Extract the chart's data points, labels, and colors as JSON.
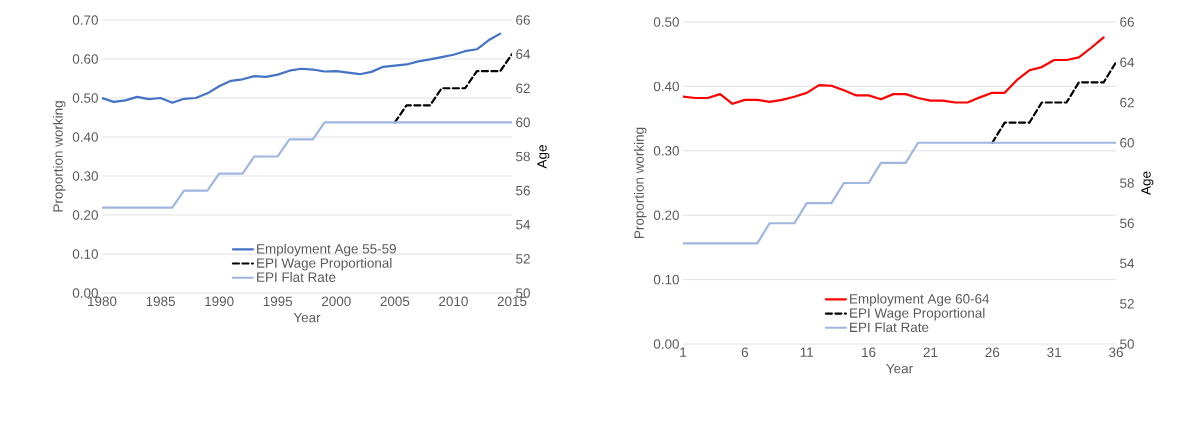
{
  "chart_data": [
    {
      "type": "line",
      "xlabel": "Year",
      "ylabel": "Proportion working",
      "y2label": "Age",
      "x": [
        1980,
        1981,
        1982,
        1983,
        1984,
        1985,
        1986,
        1987,
        1988,
        1989,
        1990,
        1991,
        1992,
        1993,
        1994,
        1995,
        1996,
        1997,
        1998,
        1999,
        2000,
        2001,
        2002,
        2003,
        2004,
        2005,
        2006,
        2007,
        2008,
        2009,
        2010,
        2011,
        2012,
        2013,
        2014,
        2015
      ],
      "series": [
        {
          "name": "Employment Age 55-59",
          "color": "#4472c4",
          "line_style": "solid",
          "axis": "y",
          "values": [
            0.5,
            0.49,
            0.494,
            0.503,
            0.497,
            0.5,
            0.488,
            0.498,
            0.5,
            0.512,
            0.53,
            0.544,
            0.548,
            0.556,
            0.554,
            0.56,
            0.57,
            0.575,
            0.573,
            0.568,
            0.569,
            0.565,
            0.561,
            0.567,
            0.58,
            0.583,
            0.586,
            0.594,
            0.599,
            0.605,
            0.611,
            0.62,
            0.625,
            0.648,
            0.665,
            null
          ]
        },
        {
          "name": "EPI Wage Proportional",
          "color": "#000000",
          "line_style": "dashed",
          "axis": "y2",
          "values": [
            null,
            null,
            null,
            null,
            null,
            null,
            null,
            null,
            null,
            null,
            null,
            null,
            null,
            null,
            null,
            null,
            null,
            null,
            null,
            null,
            null,
            null,
            null,
            null,
            null,
            60,
            61,
            61,
            61,
            62,
            62,
            62,
            63,
            63,
            63,
            64
          ]
        },
        {
          "name": "EPI Flat Rate",
          "color": "#9fb6e0",
          "line_style": "solid",
          "axis": "y2",
          "values": [
            55,
            55,
            55,
            55,
            55,
            55,
            55,
            56,
            56,
            56,
            57,
            57,
            57,
            58,
            58,
            58,
            59,
            59,
            59,
            60,
            60,
            60,
            60,
            60,
            60,
            60,
            60,
            60,
            60,
            60,
            60,
            60,
            60,
            60,
            60,
            60
          ]
        }
      ],
      "xlim": [
        1980,
        2015
      ],
      "xticks": [
        1980,
        1985,
        1990,
        1995,
        2000,
        2005,
        2010,
        2015
      ],
      "ylim": [
        0,
        0.7
      ],
      "yticks": [
        {
          "value": 0,
          "label": "0.00"
        },
        {
          "value": 0.1,
          "label": "0.10"
        },
        {
          "value": 0.2,
          "label": "0.20"
        },
        {
          "value": 0.3,
          "label": "0.30"
        },
        {
          "value": 0.4,
          "label": "0.40"
        },
        {
          "value": 0.5,
          "label": "0.50"
        },
        {
          "value": 0.6,
          "label": "0.60"
        },
        {
          "value": 0.7,
          "label": "0.70"
        }
      ],
      "y2lim": [
        50,
        66
      ],
      "y2ticks": [
        50,
        52,
        54,
        56,
        58,
        60,
        62,
        64,
        66
      ],
      "grid": "y",
      "legend": "bottom"
    },
    {
      "type": "line",
      "xlabel": "Year",
      "ylabel": "Proportion working",
      "y2label": "Age",
      "x": [
        1,
        2,
        3,
        4,
        5,
        6,
        7,
        8,
        9,
        10,
        11,
        12,
        13,
        14,
        15,
        16,
        17,
        18,
        19,
        20,
        21,
        22,
        23,
        24,
        25,
        26,
        27,
        28,
        29,
        30,
        31,
        32,
        33,
        34,
        35,
        36
      ],
      "series": [
        {
          "name": "Employment Age 60-64",
          "color": "#ff0000",
          "line_style": "solid",
          "axis": "y",
          "values": [
            0.384,
            0.382,
            0.382,
            0.388,
            0.373,
            0.379,
            0.379,
            0.376,
            0.379,
            0.384,
            0.39,
            0.402,
            0.401,
            0.394,
            0.386,
            0.386,
            0.38,
            0.388,
            0.388,
            0.382,
            0.378,
            0.378,
            0.375,
            0.375,
            0.383,
            0.39,
            0.39,
            0.41,
            0.425,
            0.43,
            0.441,
            0.441,
            0.445,
            0.46,
            0.476,
            null
          ]
        },
        {
          "name": "EPI Wage Proportional",
          "color": "#000000",
          "line_style": "dashed",
          "axis": "y2",
          "values": [
            null,
            null,
            null,
            null,
            null,
            null,
            null,
            null,
            null,
            null,
            null,
            null,
            null,
            null,
            null,
            null,
            null,
            null,
            null,
            null,
            null,
            null,
            null,
            null,
            null,
            60,
            61,
            61,
            61,
            62,
            62,
            62,
            63,
            63,
            63,
            64
          ]
        },
        {
          "name": "EPI Flat Rate",
          "color": "#9fb6e0",
          "line_style": "solid",
          "axis": "y2",
          "values": [
            55,
            55,
            55,
            55,
            55,
            55,
            55,
            56,
            56,
            56,
            57,
            57,
            57,
            58,
            58,
            58,
            59,
            59,
            59,
            60,
            60,
            60,
            60,
            60,
            60,
            60,
            60,
            60,
            60,
            60,
            60,
            60,
            60,
            60,
            60,
            60
          ]
        }
      ],
      "xlim": [
        1,
        36
      ],
      "xticks": [
        1,
        6,
        11,
        16,
        21,
        26,
        31,
        36
      ],
      "ylim": [
        0,
        0.5
      ],
      "yticks": [
        {
          "value": 0,
          "label": "0.00"
        },
        {
          "value": 0.1,
          "label": "0.10"
        },
        {
          "value": 0.2,
          "label": "0.20"
        },
        {
          "value": 0.3,
          "label": "0.30"
        },
        {
          "value": 0.4,
          "label": "0.40"
        },
        {
          "value": 0.5,
          "label": "0.50"
        }
      ],
      "y2lim": [
        50,
        66
      ],
      "y2ticks": [
        50,
        52,
        54,
        56,
        58,
        60,
        62,
        64,
        66
      ],
      "grid": "y",
      "legend": "bottom"
    }
  ]
}
